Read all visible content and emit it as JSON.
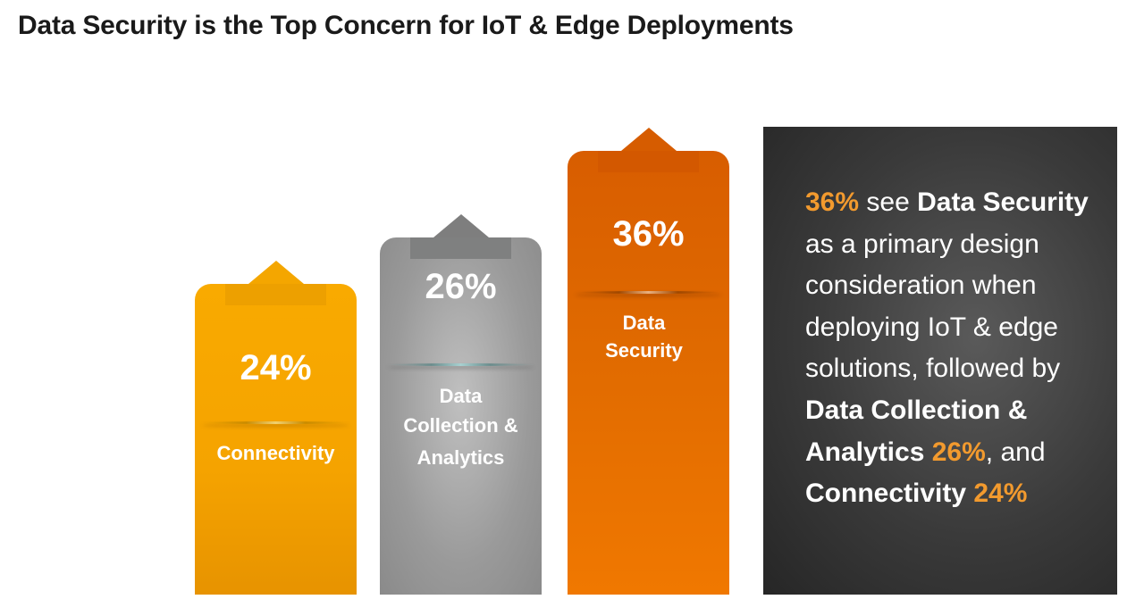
{
  "title": "Data Security is the Top Concern for IoT & Edge Deployments",
  "chart_data": {
    "type": "bar",
    "title": "Data Security is the Top Concern for IoT & Edge Deployments",
    "categories": [
      "Connectivity",
      "Data Collection & Analytics",
      "Data Security"
    ],
    "values": [
      24,
      26,
      36
    ],
    "value_labels": [
      "24%",
      "26%",
      "36%"
    ],
    "label_lines": [
      [
        "Connectivity"
      ],
      [
        "Data",
        "Collection &",
        "Analytics"
      ],
      [
        "Data",
        "Security"
      ]
    ],
    "colors": [
      "#f5a300",
      "#9a9a9a",
      "#e06a00"
    ],
    "unit": "%"
  },
  "panel": {
    "s1": "36%",
    "s2": " see ",
    "s3": "Data Security",
    "s4": " as a primary design consideration when deploying IoT & edge solutions, followed by ",
    "s5": "Data Collection & Analytics",
    "s6": "26%",
    "s7": ", and ",
    "s8": "Connectivity",
    "s9": "24%",
    "accent": "#f29a2e"
  }
}
